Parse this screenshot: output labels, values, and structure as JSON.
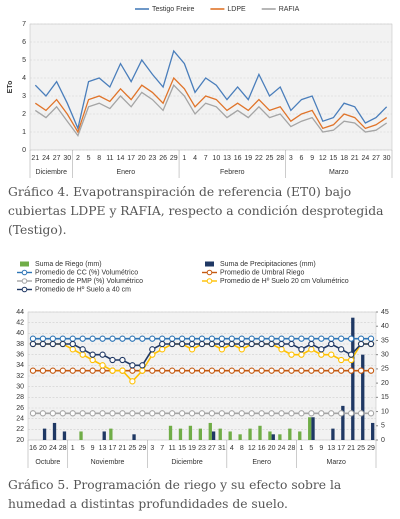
{
  "chart_data": [
    {
      "type": "line",
      "ylabel": "ETo",
      "categories": [
        "21",
        "24",
        "27",
        "30",
        "2",
        "5",
        "8",
        "11",
        "14",
        "17",
        "20",
        "23",
        "26",
        "29",
        "1",
        "4",
        "7",
        "10",
        "13",
        "16",
        "19",
        "22",
        "25",
        "28",
        "3",
        "6",
        "9",
        "12",
        "15",
        "18",
        "21",
        "24",
        "27",
        "30"
      ],
      "groups": [
        "Diciembre",
        "Enero",
        "Febrero",
        "Marzo"
      ],
      "series": [
        {
          "name": "Testigo Freire",
          "color": "#4a7ebb",
          "values": [
            3.6,
            3.0,
            3.8,
            2.6,
            1.2,
            3.8,
            4.0,
            3.5,
            4.8,
            3.8,
            5.0,
            4.2,
            3.5,
            5.5,
            4.8,
            3.2,
            4.0,
            3.6,
            2.8,
            3.5,
            2.8,
            4.2,
            3.0,
            3.5,
            2.2,
            2.8,
            3.0,
            1.6,
            1.8,
            2.6,
            2.4,
            1.5,
            1.8,
            2.4
          ]
        },
        {
          "name": "LDPE",
          "color": "#e0742a",
          "values": [
            2.6,
            2.2,
            2.8,
            2.0,
            1.0,
            2.8,
            3.0,
            2.7,
            3.4,
            2.8,
            3.6,
            3.2,
            2.6,
            4.0,
            3.4,
            2.4,
            3.0,
            2.8,
            2.2,
            2.6,
            2.2,
            2.8,
            2.2,
            2.4,
            1.6,
            2.0,
            2.2,
            1.2,
            1.4,
            2.0,
            1.8,
            1.2,
            1.4,
            1.8
          ]
        },
        {
          "name": "RAFIA",
          "color": "#a5a5a5",
          "values": [
            2.2,
            1.8,
            2.4,
            1.6,
            0.8,
            2.4,
            2.6,
            2.3,
            3.0,
            2.4,
            3.2,
            2.8,
            2.2,
            3.6,
            3.0,
            2.0,
            2.6,
            2.4,
            1.8,
            2.2,
            1.8,
            2.4,
            1.8,
            2.0,
            1.3,
            1.6,
            1.8,
            1.0,
            1.1,
            1.6,
            1.5,
            1.0,
            1.1,
            1.5
          ]
        }
      ],
      "ylim": [
        0,
        7
      ],
      "yticks": [
        0,
        1,
        2,
        3,
        4,
        5,
        6,
        7
      ],
      "grid": true
    },
    {
      "type": "combo",
      "categories": [
        "16",
        "20",
        "24",
        "28",
        "1",
        "5",
        "9",
        "13",
        "17",
        "21",
        "25",
        "29",
        "3",
        "7",
        "11",
        "15",
        "19",
        "23",
        "27",
        "31",
        "4",
        "8",
        "12",
        "16",
        "20",
        "24",
        "28",
        "1",
        "5",
        "9",
        "13",
        "17",
        "21",
        "25",
        "29"
      ],
      "groups": [
        "Octubre",
        "Noviembre",
        "Diciembre",
        "Enero",
        "Marzo"
      ],
      "series": [
        {
          "name": "Suma de Riego (mm)",
          "kind": "bar",
          "axis": "y2",
          "color": "#70ad47",
          "values": [
            0,
            0,
            0,
            0,
            0,
            3,
            0,
            0,
            4,
            0,
            0,
            0,
            0,
            0,
            5,
            4,
            5,
            4,
            6,
            4,
            3,
            2,
            4,
            5,
            3,
            2,
            4,
            3,
            8,
            0,
            0,
            0,
            0,
            0,
            0
          ]
        },
        {
          "name": "Suma de Precipitaciones (mm)",
          "kind": "bar",
          "axis": "y2",
          "color": "#1f3864",
          "values": [
            0,
            4,
            6,
            3,
            0,
            0,
            0,
            3,
            0,
            0,
            2,
            0,
            0,
            0,
            0,
            0,
            0,
            0,
            3,
            0,
            0,
            0,
            0,
            0,
            2,
            0,
            0,
            0,
            8,
            0,
            4,
            12,
            43,
            30,
            6
          ]
        },
        {
          "name": "Promedio de CC (%) Volumétrico",
          "kind": "line",
          "color": "#2e75b6",
          "values": [
            39,
            39,
            39,
            39,
            39,
            39,
            39,
            39,
            39,
            39,
            39,
            39,
            39,
            39,
            39,
            39,
            39,
            39,
            39,
            39,
            39,
            39,
            39,
            39,
            39,
            39,
            39,
            39,
            39,
            39,
            39,
            39,
            39,
            39,
            39
          ]
        },
        {
          "name": "Promedio de Umbral Riego",
          "kind": "line",
          "color": "#c55a11",
          "values": [
            33,
            33,
            33,
            33,
            33,
            33,
            33,
            33,
            33,
            33,
            33,
            33,
            33,
            33,
            33,
            33,
            33,
            33,
            33,
            33,
            33,
            33,
            33,
            33,
            33,
            33,
            33,
            33,
            33,
            33,
            33,
            33,
            33,
            33,
            33
          ]
        },
        {
          "name": "Promedio de PMP (%) Volumétrico",
          "kind": "line",
          "color": "#a5a5a5",
          "values": [
            25,
            25,
            25,
            25,
            25,
            25,
            25,
            25,
            25,
            25,
            25,
            25,
            25,
            25,
            25,
            25,
            25,
            25,
            25,
            25,
            25,
            25,
            25,
            25,
            25,
            25,
            25,
            25,
            25,
            25,
            25,
            25,
            25,
            25,
            25
          ]
        },
        {
          "name": "Promedio de Hº Suelo 20 cm Volumétrico",
          "kind": "line",
          "color": "#ffc000",
          "values": [
            38,
            38,
            38,
            38,
            37,
            36,
            35,
            34,
            33,
            33,
            31,
            33,
            36,
            37,
            38,
            38,
            37,
            38,
            38,
            37,
            38,
            37,
            38,
            38,
            38,
            37,
            36,
            36,
            37,
            36,
            36,
            35,
            35,
            38,
            38
          ]
        },
        {
          "name": "Promedio de Hº Suelo a 40 cm",
          "kind": "line",
          "color": "#203864",
          "values": [
            38,
            38,
            38,
            38,
            38,
            37,
            36,
            36,
            35,
            35,
            34,
            34,
            37,
            38,
            38,
            38,
            38,
            38,
            38,
            38,
            38,
            38,
            38,
            38,
            38,
            38,
            38,
            37,
            38,
            37,
            38,
            37,
            36,
            38,
            38
          ]
        }
      ],
      "ylim": [
        20,
        44
      ],
      "yticks": [
        20,
        22,
        24,
        26,
        28,
        30,
        32,
        34,
        36,
        38,
        40,
        42,
        44
      ],
      "y2lim": [
        0,
        45
      ],
      "y2ticks": [
        0,
        5,
        10,
        15,
        20,
        25,
        30,
        35,
        40,
        45
      ],
      "grid": true
    }
  ],
  "captions": [
    "Gráfico 4. Evapotranspiración de referencia (ET0) bajo cubiertas LDPE y RAFIA, respecto a condición desprotegida (Testigo).",
    "Gráfico 5. Programación de riego y su efecto sobre la humedad a distintas profundidades de suelo."
  ]
}
